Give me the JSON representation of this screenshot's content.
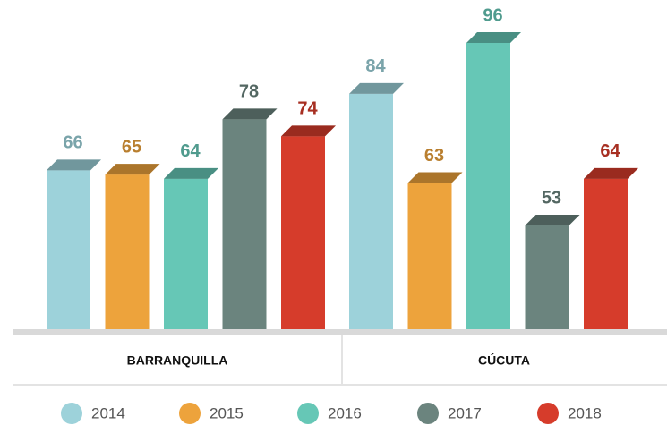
{
  "chart_data": {
    "type": "bar",
    "categories": [
      "BARRANQUILLA",
      "CÚCUTA"
    ],
    "series": [
      {
        "name": "2014",
        "color": "#9dd2da",
        "values": [
          66,
          84
        ]
      },
      {
        "name": "2015",
        "color": "#eda33c",
        "values": [
          65,
          63
        ]
      },
      {
        "name": "2016",
        "color": "#66c7b6",
        "values": [
          64,
          96
        ]
      },
      {
        "name": "2017",
        "color": "#6b847e",
        "values": [
          78,
          53
        ]
      },
      {
        "name": "2018",
        "color": "#d63c2b",
        "values": [
          74,
          64
        ]
      }
    ]
  }
}
